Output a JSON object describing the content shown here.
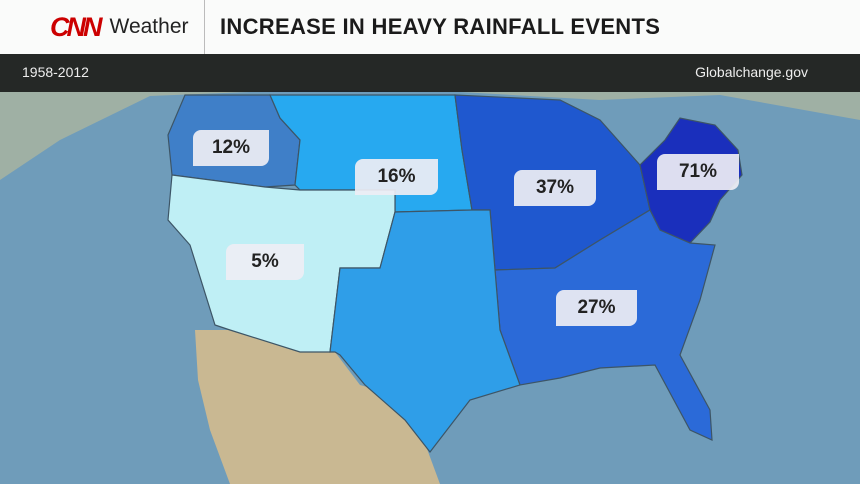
{
  "header": {
    "logo_text": "CNN",
    "brand": "Weather",
    "title": "INCREASE IN HEAVY RAINFALL EVENTS"
  },
  "subheader": {
    "years": "1958-2012",
    "source": "Globalchange.gov"
  },
  "regions": [
    {
      "name": "northwest",
      "value": "12%",
      "color": "#3f7fc8"
    },
    {
      "name": "great-plains-north",
      "value": "16%",
      "color": "#27a9f0"
    },
    {
      "name": "midwest",
      "value": "37%",
      "color": "#1f58cf"
    },
    {
      "name": "northeast",
      "value": "71%",
      "color": "#1a2fbc"
    },
    {
      "name": "southwest",
      "value": "5%",
      "color": "#bfeff5"
    },
    {
      "name": "southeast",
      "value": "27%",
      "color": "#2b6ad8"
    },
    {
      "name": "great-plains-south",
      "value": "",
      "color": "#2f9ee8"
    }
  ],
  "colors": {
    "ocean": "#6f9cba",
    "land": "#b9b48e",
    "canada": "#9fb0a4",
    "mexico": "#c9b892",
    "brand_red": "#cc0000"
  }
}
